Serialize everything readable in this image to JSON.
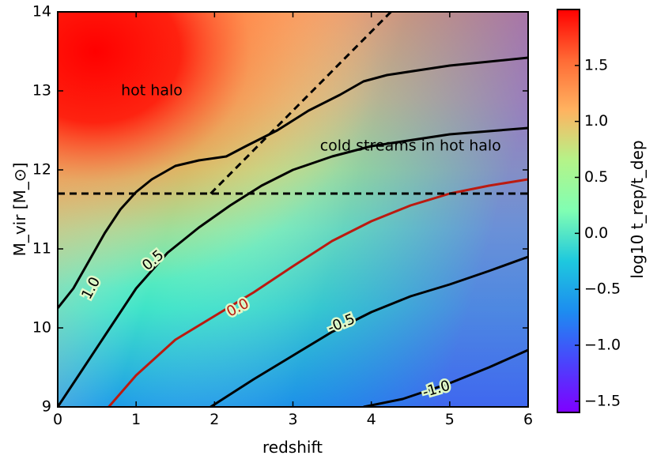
{
  "chart_data": {
    "type": "heatmap",
    "title": "",
    "xlabel": "redshift",
    "ylabel": "M_vir [M_⊙]",
    "colorbar_label": "log10 t_rep/t_dep",
    "xlim": [
      0,
      6
    ],
    "ylim": [
      9,
      14
    ],
    "clim": [
      -1.6,
      2.0
    ],
    "x_ticks": [
      0,
      1,
      2,
      3,
      4,
      5,
      6
    ],
    "y_ticks": [
      9,
      10,
      11,
      12,
      13,
      14
    ],
    "colorbar_ticks": [
      1.5,
      1.0,
      0.5,
      0.0,
      -0.5,
      -1.0,
      -1.5
    ],
    "colorbar_tick_labels": [
      "1.5",
      "1.0",
      "0.5",
      "0.0",
      "−0.5",
      "−1.0",
      "−1.5"
    ],
    "colormap": "rainbow",
    "contours": [
      {
        "level": 1.0,
        "label": "1.0",
        "color": "#000000",
        "label_at": [
          0.43,
          10.5
        ],
        "label_angle": -62,
        "points": [
          [
            0,
            10.25
          ],
          [
            0.2,
            10.5
          ],
          [
            0.4,
            10.85
          ],
          [
            0.6,
            11.2
          ],
          [
            0.8,
            11.5
          ],
          [
            1.0,
            11.72
          ],
          [
            1.2,
            11.88
          ],
          [
            1.5,
            12.05
          ],
          [
            1.8,
            12.12
          ],
          [
            2.15,
            12.17
          ],
          [
            2.4,
            12.3
          ],
          [
            2.8,
            12.5
          ],
          [
            3.2,
            12.75
          ],
          [
            3.6,
            12.95
          ],
          [
            3.9,
            13.12
          ],
          [
            4.2,
            13.2
          ],
          [
            5.0,
            13.32
          ],
          [
            6.0,
            13.42
          ]
        ]
      },
      {
        "level": 0.5,
        "label": "0.5",
        "color": "#000000",
        "label_at": [
          1.22,
          10.85
        ],
        "label_angle": -40,
        "points": [
          [
            0,
            9.0
          ],
          [
            0.3,
            9.45
          ],
          [
            0.6,
            9.9
          ],
          [
            1.0,
            10.5
          ],
          [
            1.4,
            10.95
          ],
          [
            1.8,
            11.27
          ],
          [
            2.2,
            11.55
          ],
          [
            2.6,
            11.8
          ],
          [
            3.0,
            12.0
          ],
          [
            3.5,
            12.17
          ],
          [
            4.0,
            12.3
          ],
          [
            5.0,
            12.45
          ],
          [
            6.0,
            12.53
          ]
        ]
      },
      {
        "level": 0.0,
        "label": "0.0",
        "color": "#bb1a10",
        "label_at": [
          2.3,
          10.25
        ],
        "label_angle": -28,
        "points": [
          [
            0.65,
            9.0
          ],
          [
            1.0,
            9.4
          ],
          [
            1.5,
            9.85
          ],
          [
            2.0,
            10.15
          ],
          [
            2.5,
            10.45
          ],
          [
            3.0,
            10.78
          ],
          [
            3.5,
            11.1
          ],
          [
            4.0,
            11.35
          ],
          [
            4.5,
            11.55
          ],
          [
            5.0,
            11.7
          ],
          [
            5.5,
            11.8
          ],
          [
            6.0,
            11.88
          ]
        ]
      },
      {
        "level": -0.5,
        "label": "-0.5",
        "color": "#000000",
        "label_at": [
          3.62,
          10.05
        ],
        "label_angle": -22,
        "points": [
          [
            1.95,
            9.0
          ],
          [
            2.5,
            9.35
          ],
          [
            3.0,
            9.65
          ],
          [
            3.5,
            9.95
          ],
          [
            4.0,
            10.2
          ],
          [
            4.5,
            10.4
          ],
          [
            5.0,
            10.55
          ],
          [
            5.5,
            10.72
          ],
          [
            6.0,
            10.9
          ]
        ]
      },
      {
        "level": -1.0,
        "label": "-1.0",
        "color": "#000000",
        "label_at": [
          4.83,
          9.22
        ],
        "label_angle": -16,
        "points": [
          [
            3.9,
            9.0
          ],
          [
            4.4,
            9.1
          ],
          [
            5.0,
            9.3
          ],
          [
            5.5,
            9.5
          ],
          [
            6.0,
            9.72
          ]
        ]
      }
    ],
    "dashed_lines": [
      {
        "name": "horizontal-threshold",
        "points": [
          [
            0,
            11.7
          ],
          [
            6,
            11.7
          ]
        ]
      },
      {
        "name": "diagonal-threshold",
        "points": [
          [
            1.95,
            11.7
          ],
          [
            4.25,
            14.0
          ]
        ]
      }
    ],
    "annotations": [
      {
        "text": "hot halo",
        "at": [
          1.2,
          13.0
        ]
      },
      {
        "text": "cold streams in hot halo",
        "at": [
          4.5,
          12.3
        ]
      }
    ]
  }
}
